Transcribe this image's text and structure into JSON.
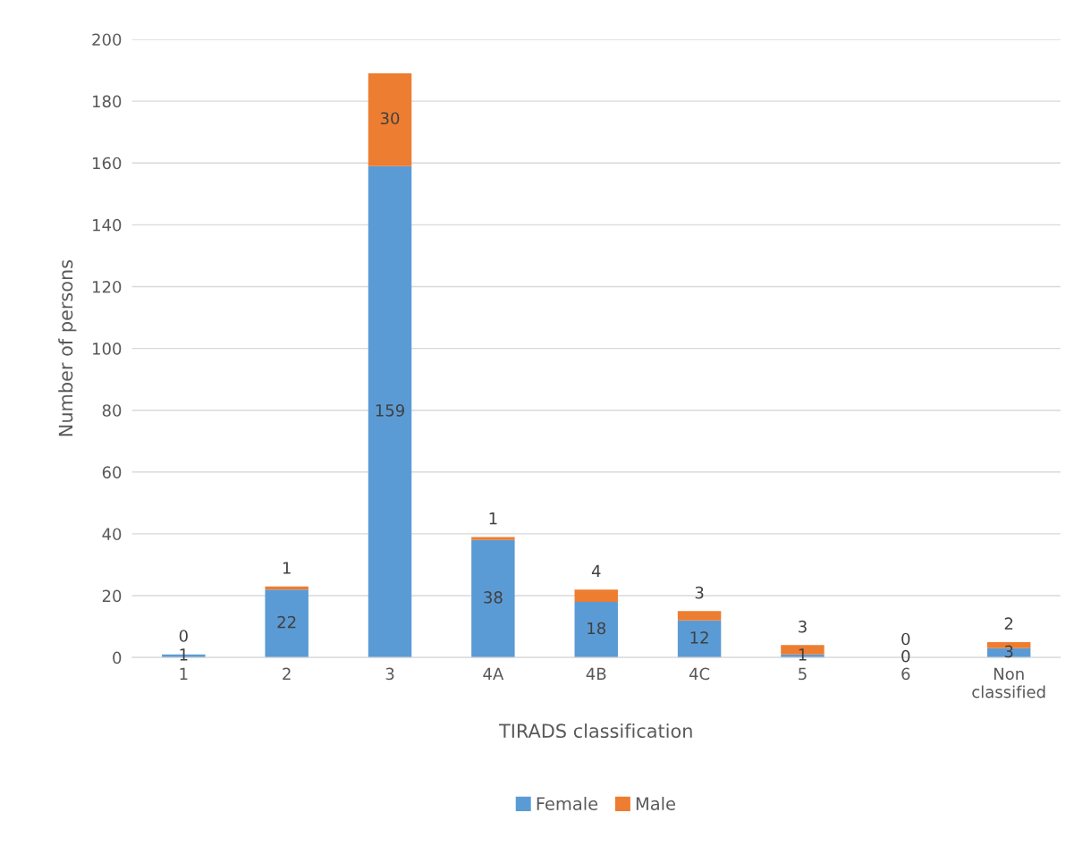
{
  "chart_data": {
    "type": "bar",
    "stacked": true,
    "xlabel": "TIRADS classification",
    "ylabel": "Number of persons",
    "categories": [
      "1",
      "2",
      "3",
      "4A",
      "4B",
      "4C",
      "5",
      "6",
      "Non classified"
    ],
    "series": [
      {
        "name": "Female",
        "color": "#5b9bd5",
        "values": [
          1,
          22,
          159,
          38,
          18,
          12,
          1,
          0,
          3
        ]
      },
      {
        "name": "Male",
        "color": "#ed7d31",
        "values": [
          0,
          1,
          30,
          1,
          4,
          3,
          3,
          0,
          2
        ]
      }
    ],
    "ylim": [
      0,
      200
    ],
    "yticks": [
      0,
      20,
      40,
      60,
      80,
      100,
      120,
      140,
      160,
      180,
      200
    ],
    "grid": "y",
    "legend": "bottom",
    "data_labels": true
  }
}
